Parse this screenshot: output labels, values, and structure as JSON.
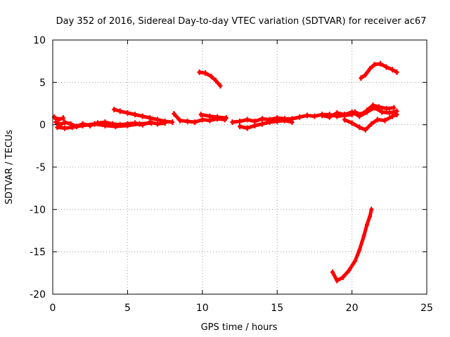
{
  "chart_data": {
    "type": "scatter",
    "title": "Day 352 of 2016, Sidereal Day-to-day VTEC variation (SDTVAR) for receiver ac67",
    "xlabel": "GPS time / hours",
    "ylabel": "SDTVAR / TECUs",
    "xlim": [
      0,
      25
    ],
    "ylim": [
      -20,
      10
    ],
    "xticks": [
      0,
      5,
      10,
      15,
      20,
      25
    ],
    "yticks": [
      10,
      5,
      0,
      -5,
      -10,
      -15,
      -20
    ],
    "grid": true,
    "series_color": "#ff0000",
    "series": [
      {
        "name": "track-main-1",
        "points": [
          [
            0.2,
            0.3
          ],
          [
            0.5,
            0.0
          ],
          [
            0.8,
            0.3
          ],
          [
            1.2,
            0.1
          ],
          [
            1.6,
            -0.2
          ],
          [
            2.0,
            0.1
          ],
          [
            2.5,
            -0.1
          ],
          [
            3.0,
            0.2
          ],
          [
            3.5,
            0.3
          ],
          [
            4.0,
            0.1
          ],
          [
            4.5,
            0.0
          ],
          [
            5.0,
            0.1
          ],
          [
            5.5,
            0.2
          ],
          [
            6.0,
            0.0
          ],
          [
            6.5,
            0.3
          ],
          [
            7.0,
            0.1
          ],
          [
            7.5,
            0.2
          ]
        ]
      },
      {
        "name": "track-main-2",
        "points": [
          [
            0.3,
            -0.3
          ],
          [
            0.8,
            -0.4
          ],
          [
            1.3,
            -0.3
          ],
          [
            2.0,
            -0.1
          ],
          [
            2.8,
            0.1
          ],
          [
            3.5,
            -0.1
          ],
          [
            4.2,
            -0.2
          ],
          [
            5.0,
            -0.1
          ],
          [
            5.8,
            0.1
          ],
          [
            6.6,
            0.2
          ]
        ]
      },
      {
        "name": "track-main-3",
        "points": [
          [
            0.1,
            0.9
          ],
          [
            0.4,
            0.6
          ],
          [
            0.7,
            0.8
          ]
        ]
      },
      {
        "name": "track-main-4",
        "points": [
          [
            8.1,
            1.3
          ],
          [
            8.5,
            0.5
          ],
          [
            9.0,
            0.4
          ],
          [
            9.5,
            0.3
          ],
          [
            10.0,
            0.6
          ],
          [
            10.5,
            0.5
          ],
          [
            11.0,
            0.7
          ],
          [
            11.5,
            0.6
          ]
        ]
      },
      {
        "name": "track-main-5",
        "points": [
          [
            9.9,
            1.2
          ],
          [
            10.5,
            1.0
          ],
          [
            11.0,
            0.9
          ],
          [
            11.6,
            0.8
          ]
        ]
      },
      {
        "name": "track-main-6",
        "points": [
          [
            12.0,
            0.3
          ],
          [
            12.5,
            0.4
          ],
          [
            13.0,
            0.6
          ],
          [
            13.5,
            0.4
          ],
          [
            14.0,
            0.7
          ],
          [
            14.5,
            0.6
          ],
          [
            15.0,
            0.8
          ],
          [
            15.5,
            0.7
          ],
          [
            16.0,
            0.7
          ],
          [
            16.5,
            0.9
          ],
          [
            17.0,
            1.1
          ],
          [
            17.5,
            1.0
          ],
          [
            18.0,
            1.2
          ],
          [
            18.5,
            1.2
          ],
          [
            19.0,
            1.0
          ],
          [
            19.5,
            1.1
          ],
          [
            20.0,
            1.2
          ]
        ]
      },
      {
        "name": "track-main-7",
        "points": [
          [
            12.5,
            -0.2
          ],
          [
            13.0,
            -0.4
          ],
          [
            13.5,
            -0.1
          ],
          [
            14.0,
            0.1
          ],
          [
            14.5,
            0.3
          ],
          [
            15.0,
            0.4
          ],
          [
            15.5,
            0.5
          ],
          [
            16.0,
            0.3
          ]
        ]
      },
      {
        "name": "track-main-8",
        "points": [
          [
            18.0,
            1.1
          ],
          [
            18.5,
            0.9
          ],
          [
            19.0,
            1.4
          ],
          [
            19.5,
            1.2
          ],
          [
            20.0,
            1.5
          ],
          [
            20.5,
            1.0
          ],
          [
            21.0,
            1.5
          ],
          [
            21.5,
            2.0
          ],
          [
            22.0,
            1.5
          ],
          [
            22.5,
            1.4
          ],
          [
            23.0,
            1.6
          ]
        ]
      },
      {
        "name": "track-main-9",
        "points": [
          [
            19.5,
            0.6
          ],
          [
            20.0,
            0.2
          ],
          [
            20.5,
            -0.3
          ],
          [
            20.9,
            -0.6
          ],
          [
            21.3,
            0.1
          ],
          [
            21.7,
            0.6
          ],
          [
            22.2,
            0.5
          ],
          [
            22.7,
            1.0
          ],
          [
            23.0,
            1.2
          ]
        ]
      },
      {
        "name": "track-main-10",
        "points": [
          [
            20.2,
            1.5
          ],
          [
            20.6,
            1.2
          ],
          [
            21.0,
            1.7
          ],
          [
            21.4,
            2.3
          ],
          [
            21.8,
            2.1
          ],
          [
            22.3,
            1.9
          ],
          [
            22.8,
            2.0
          ]
        ]
      },
      {
        "name": "track-rising",
        "points": [
          [
            4.1,
            1.8
          ],
          [
            4.5,
            1.6
          ],
          [
            5.0,
            1.4
          ],
          [
            5.5,
            1.2
          ],
          [
            6.0,
            1.0
          ],
          [
            6.5,
            0.8
          ],
          [
            7.0,
            0.6
          ],
          [
            7.5,
            0.4
          ],
          [
            8.0,
            0.3
          ]
        ]
      },
      {
        "name": "track-arc-10h",
        "points": [
          [
            9.8,
            6.2
          ],
          [
            10.2,
            6.1
          ],
          [
            10.6,
            5.7
          ],
          [
            10.9,
            5.2
          ],
          [
            11.2,
            4.6
          ]
        ]
      },
      {
        "name": "track-arc-21h",
        "points": [
          [
            20.6,
            5.5
          ],
          [
            20.9,
            5.9
          ],
          [
            21.2,
            6.6
          ],
          [
            21.5,
            7.1
          ],
          [
            21.9,
            7.2
          ],
          [
            22.3,
            6.8
          ],
          [
            22.7,
            6.5
          ],
          [
            23.0,
            6.2
          ]
        ]
      },
      {
        "name": "track-dip-19h",
        "points": [
          [
            18.7,
            -17.4
          ],
          [
            19.0,
            -18.4
          ],
          [
            19.4,
            -18.0
          ],
          [
            19.8,
            -17.2
          ],
          [
            20.2,
            -16.1
          ],
          [
            20.5,
            -14.8
          ],
          [
            20.8,
            -13.1
          ],
          [
            21.0,
            -11.8
          ],
          [
            21.2,
            -10.8
          ],
          [
            21.3,
            -10.0
          ]
        ]
      }
    ]
  }
}
